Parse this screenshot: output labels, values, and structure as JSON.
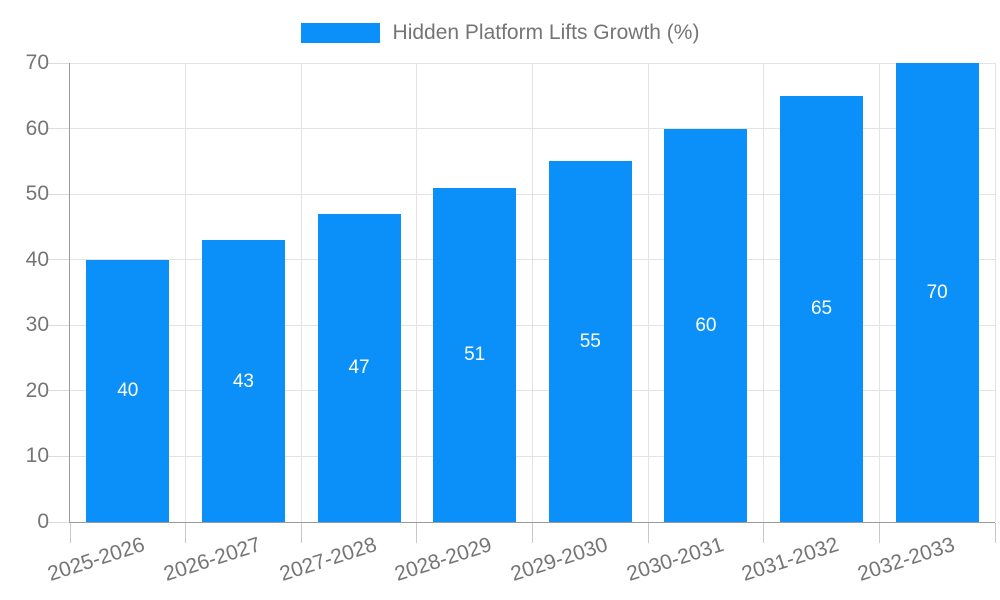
{
  "chart_data": {
    "type": "bar",
    "title": "Hidden Platform Lifts Growth (%)",
    "categories": [
      "2025-2026",
      "2026-2027",
      "2027-2028",
      "2028-2029",
      "2029-2030",
      "2030-2031",
      "2031-2032",
      "2032-2033"
    ],
    "values": [
      40,
      43,
      47,
      51,
      55,
      60,
      65,
      70
    ],
    "yticks": [
      0,
      10,
      20,
      30,
      40,
      50,
      60,
      70
    ],
    "ylim": [
      0,
      70
    ],
    "xlabel": "",
    "ylabel": "",
    "grid": true,
    "legend_position": "top-center",
    "legend_entries": [
      "Hidden Platform Lifts Growth (%)"
    ],
    "bar_value_labels": [
      "40",
      "43",
      "47",
      "51",
      "55",
      "60",
      "65",
      "70"
    ]
  },
  "legend": {
    "series_label": "Hidden Platform Lifts Growth (%)"
  },
  "colors": {
    "bar": "#0a90f8",
    "bar_label": "#ffffff",
    "gridline": "#e3e3e3",
    "axis_line": "#9a9a9a",
    "tick_mark": "#c9c9c9",
    "tick_text": "#757575",
    "background": "#ffffff"
  }
}
